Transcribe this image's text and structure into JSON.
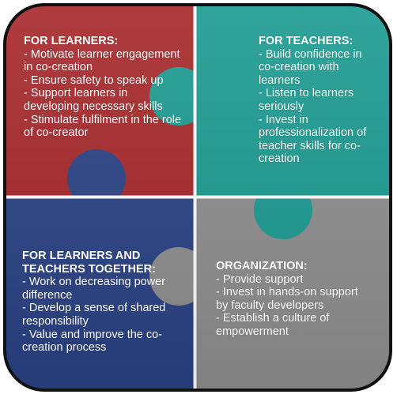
{
  "colors": {
    "learners": "#a6272a",
    "teachers": "#1a9a90",
    "together": "#2a4285",
    "organization": "#8f8f8f",
    "frame": "#111111"
  },
  "quadrants": {
    "learners": {
      "title": "FOR LEARNERS:",
      "items": [
        "Motivate learner engagement in co-creation",
        "Ensure safety to speak up",
        "Support learners in developing necessary skills",
        "Stimulate fulfilment in the role of co-creator"
      ]
    },
    "teachers": {
      "title": "FOR TEACHERS:",
      "items": [
        "Build confidence in co-creation with learners",
        "Listen to learners seriously",
        "Invest in professionalization of teacher skills for co-creation"
      ]
    },
    "together": {
      "title": "FOR LEARNERS AND\nTEACHERS TOGETHER:",
      "items": [
        "Work on decreasing power difference",
        "Develop a sense of shared responsibility",
        "Value and improve the co-creation process"
      ]
    },
    "organization": {
      "title": "ORGANIZATION:",
      "items": [
        "Provide support",
        "Invest in hands-on support by faculty developers",
        "Establish a culture of empowerment"
      ]
    }
  }
}
